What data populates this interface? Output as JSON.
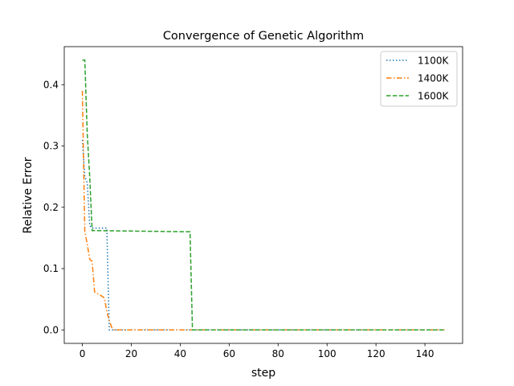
{
  "chart_data": {
    "type": "line",
    "title": "Convergence of Genetic Algorithm",
    "xlabel": "step",
    "ylabel": "Relative Error",
    "xlim": [
      -7.4,
      155.4
    ],
    "ylim": [
      -0.022,
      0.462
    ],
    "xticks": [
      0,
      20,
      40,
      60,
      80,
      100,
      120,
      140
    ],
    "yticks": [
      0.0,
      0.1,
      0.2,
      0.3,
      0.4
    ],
    "ytick_labels": [
      "0.0",
      "0.1",
      "0.2",
      "0.3",
      "0.4"
    ],
    "legend_position": "upper right",
    "grid": false,
    "series": [
      {
        "name": "1100K",
        "color": "#1f77b4",
        "style": "dotted",
        "x": [
          0,
          1,
          2,
          3,
          4,
          10,
          11,
          148
        ],
        "y": [
          0.31,
          0.25,
          0.24,
          0.17,
          0.166,
          0.166,
          0.0,
          0.0
        ]
      },
      {
        "name": "1400K",
        "color": "#ff7f0e",
        "style": "dashdot",
        "x": [
          0,
          1,
          2,
          3,
          4,
          5,
          8,
          9,
          10,
          11,
          12,
          13,
          148
        ],
        "y": [
          0.39,
          0.16,
          0.14,
          0.115,
          0.112,
          0.062,
          0.055,
          0.052,
          0.03,
          0.015,
          0.004,
          0.0,
          0.0
        ]
      },
      {
        "name": "1600K",
        "color": "#2ca02c",
        "style": "dashed",
        "x": [
          0,
          1,
          2,
          3,
          4,
          44,
          45,
          148
        ],
        "y": [
          0.44,
          0.44,
          0.32,
          0.25,
          0.162,
          0.16,
          0.0,
          0.0
        ]
      }
    ]
  }
}
